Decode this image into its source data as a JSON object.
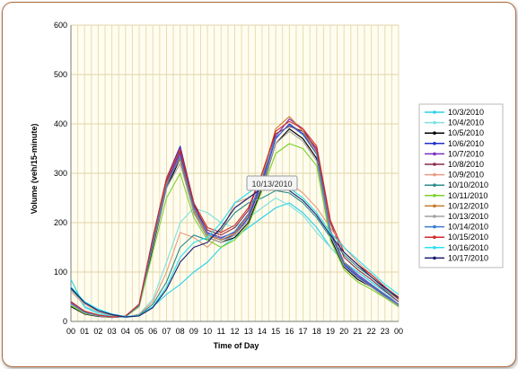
{
  "chart_data": {
    "type": "line",
    "xlabel": "Time of Day",
    "ylabel": "Volume (veh/15-minute)",
    "ylim": [
      0,
      600
    ],
    "yticks": [
      0,
      100,
      200,
      300,
      400,
      500,
      600
    ],
    "xticks": [
      "00",
      "01",
      "02",
      "03",
      "04",
      "05",
      "06",
      "07",
      "08",
      "09",
      "10",
      "11",
      "12",
      "13",
      "14",
      "15",
      "16",
      "17",
      "18",
      "19",
      "20",
      "21",
      "22",
      "23",
      "00"
    ],
    "xlim_hours": [
      0,
      24
    ],
    "grid": true,
    "legend_position": "right",
    "tooltip": "10/13/2010",
    "series": [
      {
        "name": "10/3/2010",
        "color": "#2ad0e8",
        "x": [
          0,
          1,
          2,
          3,
          4,
          5,
          6,
          7,
          8,
          9,
          10,
          11,
          12,
          13,
          14,
          15,
          16,
          17,
          18,
          19,
          20,
          21,
          22,
          23,
          24
        ],
        "values": [
          85,
          30,
          18,
          10,
          8,
          12,
          30,
          55,
          75,
          100,
          120,
          150,
          170,
          190,
          210,
          230,
          240,
          220,
          190,
          150,
          120,
          100,
          80,
          60,
          40
        ]
      },
      {
        "name": "10/4/2010",
        "color": "#7fe0e0",
        "x": [
          0,
          1,
          2,
          3,
          4,
          5,
          6,
          7,
          8,
          9,
          10,
          11,
          12,
          13,
          14,
          15,
          16,
          17,
          18,
          19,
          20,
          21,
          22,
          23,
          24
        ],
        "values": [
          70,
          28,
          15,
          9,
          8,
          15,
          45,
          120,
          200,
          230,
          220,
          200,
          190,
          210,
          230,
          250,
          235,
          215,
          180,
          150,
          120,
          95,
          75,
          55,
          40
        ]
      },
      {
        "name": "10/5/2010",
        "color": "#000000",
        "x": [
          0,
          1,
          2,
          3,
          4,
          5,
          6,
          7,
          8,
          9,
          10,
          11,
          12,
          13,
          14,
          15,
          16,
          17,
          18,
          19,
          20,
          21,
          22,
          23,
          24
        ],
        "values": [
          30,
          15,
          10,
          8,
          10,
          30,
          150,
          270,
          330,
          220,
          170,
          160,
          170,
          200,
          270,
          360,
          390,
          370,
          330,
          170,
          110,
          85,
          70,
          50,
          30
        ]
      },
      {
        "name": "10/6/2010",
        "color": "#1f2fd0",
        "x": [
          0,
          1,
          2,
          3,
          4,
          5,
          6,
          7,
          8,
          9,
          10,
          11,
          12,
          13,
          14,
          15,
          16,
          17,
          18,
          19,
          20,
          21,
          22,
          23,
          24
        ],
        "values": [
          35,
          18,
          12,
          8,
          10,
          35,
          170,
          290,
          355,
          240,
          175,
          165,
          175,
          210,
          280,
          370,
          400,
          380,
          340,
          180,
          115,
          90,
          72,
          52,
          32
        ]
      },
      {
        "name": "10/7/2010",
        "color": "#7a2fc0",
        "x": [
          0,
          1,
          2,
          3,
          4,
          5,
          6,
          7,
          8,
          9,
          10,
          11,
          12,
          13,
          14,
          15,
          16,
          17,
          18,
          19,
          20,
          21,
          22,
          23,
          24
        ],
        "values": [
          38,
          20,
          12,
          9,
          10,
          32,
          160,
          280,
          340,
          230,
          180,
          170,
          180,
          215,
          285,
          375,
          410,
          390,
          345,
          185,
          120,
          95,
          75,
          55,
          35
        ]
      },
      {
        "name": "10/8/2010",
        "color": "#8a2a48",
        "x": [
          0,
          1,
          2,
          3,
          4,
          5,
          6,
          7,
          8,
          9,
          10,
          11,
          12,
          13,
          14,
          15,
          16,
          17,
          18,
          19,
          20,
          21,
          22,
          23,
          24
        ],
        "values": [
          40,
          20,
          13,
          9,
          10,
          33,
          165,
          285,
          345,
          235,
          185,
          175,
          190,
          225,
          300,
          380,
          395,
          385,
          350,
          200,
          130,
          105,
          85,
          62,
          40
        ]
      },
      {
        "name": "10/9/2010",
        "color": "#e89a80",
        "x": [
          0,
          1,
          2,
          3,
          4,
          5,
          6,
          7,
          8,
          9,
          10,
          11,
          12,
          13,
          14,
          15,
          16,
          17,
          18,
          19,
          20,
          21,
          22,
          23,
          24
        ],
        "values": [
          60,
          35,
          20,
          12,
          9,
          14,
          40,
          100,
          180,
          170,
          150,
          180,
          240,
          250,
          270,
          290,
          280,
          260,
          230,
          190,
          150,
          120,
          95,
          70,
          50
        ]
      },
      {
        "name": "10/10/2010",
        "color": "#2a8c8c",
        "x": [
          0,
          1,
          2,
          3,
          4,
          5,
          6,
          7,
          8,
          9,
          10,
          11,
          12,
          13,
          14,
          15,
          16,
          17,
          18,
          19,
          20,
          21,
          22,
          23,
          24
        ],
        "values": [
          65,
          38,
          22,
          13,
          9,
          13,
          35,
          80,
          150,
          175,
          165,
          185,
          220,
          240,
          250,
          265,
          260,
          240,
          210,
          170,
          135,
          110,
          90,
          65,
          45
        ]
      },
      {
        "name": "10/11/2010",
        "color": "#7ad02a",
        "x": [
          0,
          1,
          2,
          3,
          4,
          5,
          6,
          7,
          8,
          9,
          10,
          11,
          12,
          13,
          14,
          15,
          16,
          17,
          18,
          19,
          20,
          21,
          22,
          23,
          24
        ],
        "values": [
          32,
          16,
          11,
          8,
          10,
          30,
          140,
          250,
          300,
          210,
          165,
          150,
          165,
          195,
          265,
          340,
          360,
          350,
          315,
          165,
          105,
          80,
          65,
          48,
          30
        ]
      },
      {
        "name": "10/12/2010",
        "color": "#c8782a",
        "x": [
          0,
          1,
          2,
          3,
          4,
          5,
          6,
          7,
          8,
          9,
          10,
          11,
          12,
          13,
          14,
          15,
          16,
          17,
          18,
          19,
          20,
          21,
          22,
          23,
          24
        ],
        "values": [
          36,
          18,
          12,
          8,
          10,
          34,
          165,
          280,
          330,
          225,
          175,
          165,
          178,
          215,
          290,
          390,
          415,
          385,
          340,
          185,
          120,
          92,
          74,
          54,
          34
        ]
      },
      {
        "name": "10/13/2010",
        "color": "#a0a0a0",
        "x": [
          0,
          1,
          2,
          3,
          4,
          5,
          6,
          7,
          8,
          9,
          10,
          11,
          12,
          13,
          14,
          15,
          16,
          17,
          18,
          19,
          20,
          21,
          22,
          23,
          24
        ],
        "values": [
          35,
          17,
          11,
          8,
          10,
          32,
          155,
          270,
          320,
          220,
          170,
          160,
          175,
          205,
          275,
          360,
          385,
          365,
          325,
          175,
          112,
          88,
          70,
          50,
          32
        ]
      },
      {
        "name": "10/14/2010",
        "color": "#3a7ad0",
        "x": [
          0,
          1,
          2,
          3,
          4,
          5,
          6,
          7,
          8,
          9,
          10,
          11,
          12,
          13,
          14,
          15,
          16,
          17,
          18,
          19,
          20,
          21,
          22,
          23,
          24
        ],
        "values": [
          37,
          19,
          12,
          9,
          10,
          33,
          160,
          275,
          335,
          230,
          178,
          168,
          182,
          218,
          288,
          372,
          398,
          378,
          338,
          182,
          118,
          92,
          74,
          54,
          34
        ]
      },
      {
        "name": "10/15/2010",
        "color": "#d02a2a",
        "x": [
          0,
          1,
          2,
          3,
          4,
          5,
          6,
          7,
          8,
          9,
          10,
          11,
          12,
          13,
          14,
          15,
          16,
          17,
          18,
          19,
          20,
          21,
          22,
          23,
          24
        ],
        "values": [
          40,
          21,
          13,
          9,
          11,
          35,
          170,
          290,
          350,
          240,
          190,
          180,
          195,
          230,
          300,
          385,
          405,
          390,
          355,
          205,
          140,
          115,
          95,
          70,
          45
        ]
      },
      {
        "name": "10/16/2010",
        "color": "#2ae0f0",
        "x": [
          0,
          1,
          2,
          3,
          4,
          5,
          6,
          7,
          8,
          9,
          10,
          11,
          12,
          13,
          14,
          15,
          16,
          17,
          18,
          19,
          20,
          21,
          22,
          23,
          24
        ],
        "values": [
          70,
          40,
          25,
          15,
          10,
          12,
          30,
          70,
          130,
          160,
          170,
          200,
          240,
          260,
          280,
          290,
          270,
          250,
          220,
          180,
          150,
          125,
          100,
          75,
          55
        ]
      },
      {
        "name": "10/17/2010",
        "color": "#1a1a70",
        "x": [
          0,
          1,
          2,
          3,
          4,
          5,
          6,
          7,
          8,
          9,
          10,
          11,
          12,
          13,
          14,
          15,
          16,
          17,
          18,
          19,
          20,
          21,
          22,
          23,
          24
        ],
        "values": [
          68,
          38,
          22,
          14,
          9,
          11,
          28,
          65,
          120,
          150,
          160,
          190,
          230,
          250,
          270,
          280,
          265,
          245,
          215,
          175,
          140,
          115,
          90,
          68,
          48
        ]
      }
    ]
  }
}
